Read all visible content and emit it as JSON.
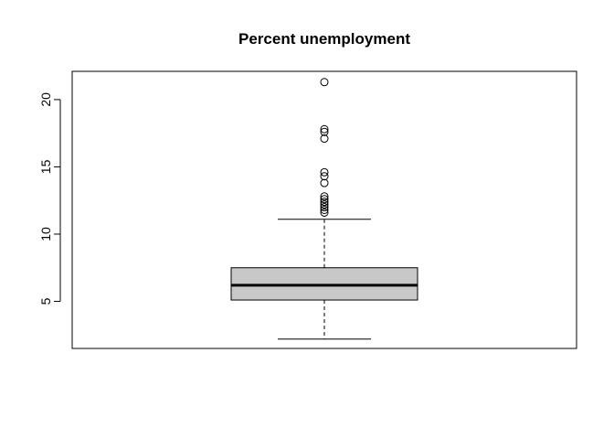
{
  "chart_data": {
    "type": "boxplot",
    "title": "Percent unemployment",
    "xlabel": "",
    "ylabel": "",
    "yticks": [
      5,
      10,
      15,
      20
    ],
    "ylim": [
      1.5,
      22.1
    ],
    "grid": false,
    "legend": "none",
    "box": {
      "whisker_low": 2.2,
      "q1": 5.1,
      "median": 6.2,
      "q3": 7.5,
      "whisker_high": 11.1,
      "fill_color": "#c8c8c8",
      "outliers": [
        11.6,
        11.8,
        12.0,
        12.2,
        12.4,
        12.6,
        12.8,
        13.8,
        14.3,
        14.6,
        17.1,
        17.6,
        17.8,
        21.3
      ]
    }
  }
}
